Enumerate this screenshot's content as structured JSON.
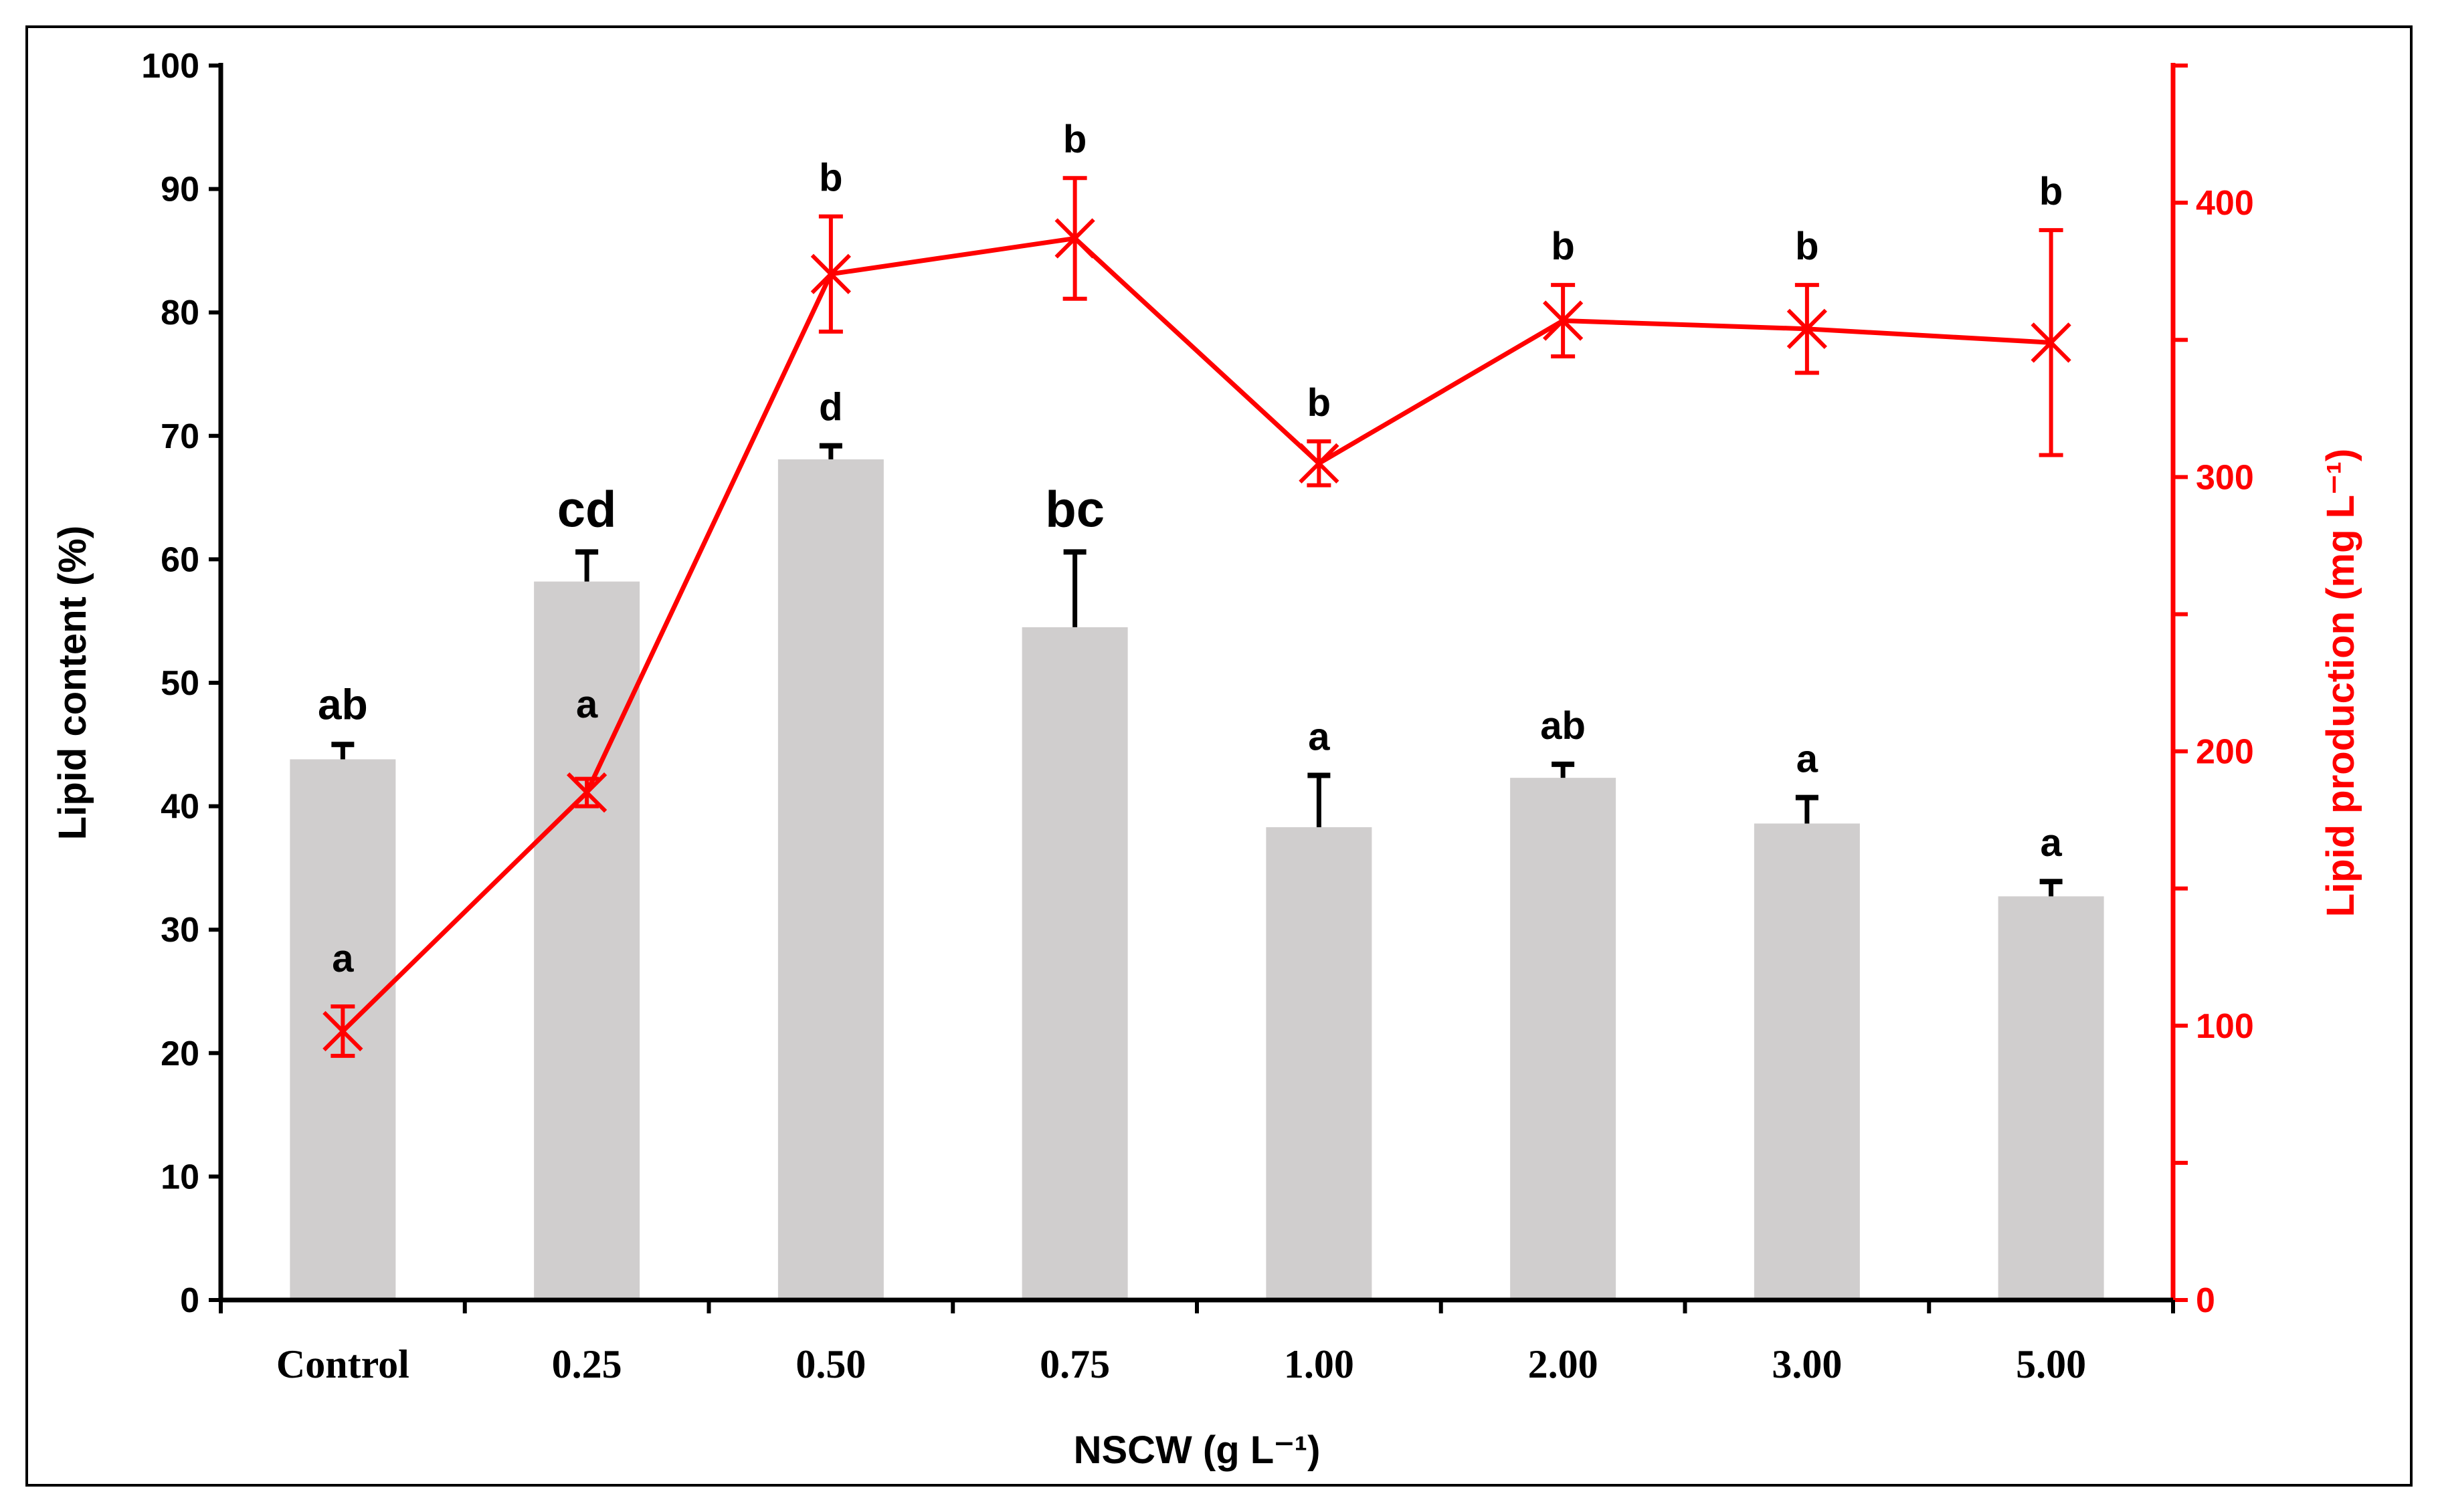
{
  "chart_data": {
    "type": "bar",
    "categories": [
      "Control",
      "0.25",
      "0.50",
      "0.75",
      "1.00",
      "2.00",
      "3.00",
      "5.00"
    ],
    "xlabel": "NSCW (g L⁻¹)",
    "ylabel": "Lipid content (%)",
    "y2label": "Lipid production (mg L⁻¹)",
    "ylim": [
      0,
      100
    ],
    "y2lim": [
      0,
      450
    ],
    "yticks": [
      0,
      10,
      20,
      30,
      40,
      50,
      60,
      70,
      80,
      90,
      100
    ],
    "y2ticks": [
      0,
      100,
      200,
      300,
      400
    ],
    "grid": false,
    "series": [
      {
        "name": "Lipid content (%)",
        "type": "bar",
        "axis": "left",
        "values": [
          43.8,
          58.2,
          68.1,
          54.5,
          38.3,
          42.3,
          38.6,
          32.7
        ],
        "error": [
          1.2,
          2.4,
          1.1,
          6.1,
          4.2,
          1.1,
          2.1,
          1.2
        ],
        "letters": [
          "ab",
          "cd",
          "d",
          "bc",
          "a",
          "ab",
          "a",
          "a"
        ],
        "color": "#d0cece"
      },
      {
        "name": "Lipid production (mg L⁻¹)",
        "type": "line",
        "axis": "right",
        "values": [
          98,
          185,
          374,
          387,
          305,
          357,
          354,
          349
        ],
        "error": [
          9,
          5,
          21,
          22,
          8,
          13,
          16,
          41
        ],
        "letters": [
          "a",
          "a",
          "b",
          "b",
          "b",
          "b",
          "b",
          "b"
        ],
        "color": "#ff0000"
      }
    ]
  }
}
